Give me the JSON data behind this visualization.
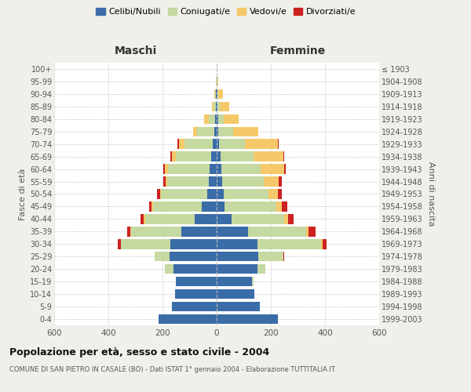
{
  "age_groups": [
    "0-4",
    "5-9",
    "10-14",
    "15-19",
    "20-24",
    "25-29",
    "30-34",
    "35-39",
    "40-44",
    "45-49",
    "50-54",
    "55-59",
    "60-64",
    "65-69",
    "70-74",
    "75-79",
    "80-84",
    "85-89",
    "90-94",
    "95-99",
    "100+"
  ],
  "birth_years": [
    "1999-2003",
    "1994-1998",
    "1989-1993",
    "1984-1988",
    "1979-1983",
    "1974-1978",
    "1969-1973",
    "1964-1968",
    "1959-1963",
    "1954-1958",
    "1949-1953",
    "1944-1948",
    "1939-1943",
    "1934-1938",
    "1929-1933",
    "1924-1928",
    "1919-1923",
    "1914-1918",
    "1909-1913",
    "1904-1908",
    "≤ 1903"
  ],
  "males": {
    "celibi": [
      215,
      165,
      155,
      150,
      160,
      175,
      170,
      130,
      80,
      55,
      35,
      28,
      25,
      20,
      15,
      8,
      5,
      3,
      2,
      0,
      0
    ],
    "coniugati": [
      0,
      0,
      0,
      0,
      30,
      55,
      185,
      185,
      185,
      180,
      170,
      155,
      155,
      130,
      105,
      65,
      25,
      10,
      5,
      2,
      0
    ],
    "vedovi": [
      0,
      0,
      0,
      0,
      0,
      0,
      0,
      5,
      5,
      5,
      5,
      5,
      10,
      15,
      20,
      15,
      15,
      5,
      3,
      0,
      0
    ],
    "divorziati": [
      0,
      0,
      0,
      0,
      0,
      0,
      10,
      10,
      10,
      10,
      10,
      10,
      8,
      5,
      5,
      0,
      0,
      0,
      0,
      0,
      0
    ]
  },
  "females": {
    "nubili": [
      225,
      160,
      140,
      130,
      150,
      155,
      150,
      115,
      55,
      30,
      25,
      20,
      18,
      15,
      10,
      5,
      5,
      3,
      2,
      0,
      0
    ],
    "coniugate": [
      0,
      0,
      0,
      5,
      30,
      90,
      235,
      215,
      195,
      190,
      165,
      155,
      145,
      120,
      95,
      55,
      20,
      8,
      5,
      2,
      0
    ],
    "vedove": [
      0,
      0,
      0,
      0,
      0,
      0,
      5,
      10,
      15,
      20,
      35,
      55,
      85,
      110,
      120,
      95,
      55,
      35,
      15,
      3,
      0
    ],
    "divorziate": [
      0,
      0,
      0,
      0,
      0,
      5,
      15,
      25,
      20,
      20,
      15,
      12,
      8,
      5,
      5,
      0,
      0,
      0,
      0,
      0,
      0
    ]
  },
  "colors": {
    "celibi": "#3a6ca8",
    "coniugati": "#c5d9a0",
    "vedovi": "#f5c96a",
    "divorziati": "#cc2222"
  },
  "title": "Popolazione per età, sesso e stato civile - 2004",
  "subtitle": "COMUNE DI SAN PIETRO IN CASALE (BO) - Dati ISTAT 1° gennaio 2004 - Elaborazione TUTTITALIA.IT",
  "xlabel_left": "Maschi",
  "xlabel_right": "Femmine",
  "ylabel_left": "Fasce di età",
  "ylabel_right": "Anni di nascita",
  "xlim": 600,
  "background_color": "#f0f0eb",
  "plot_bg": "#ffffff",
  "legend_labels": [
    "Celibi/Nubili",
    "Coniugati/e",
    "Vedovi/e",
    "Divorziati/e"
  ]
}
